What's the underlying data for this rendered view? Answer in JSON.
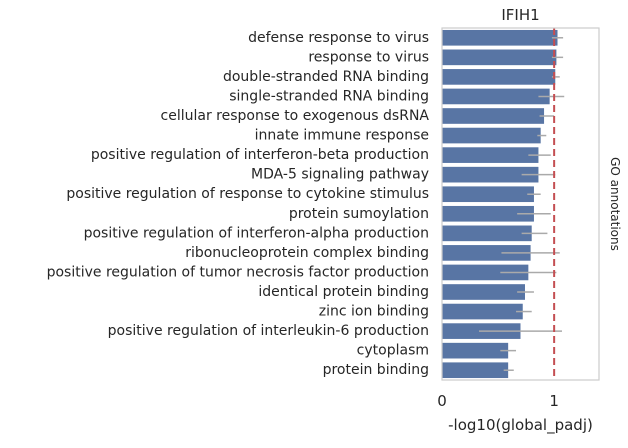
{
  "chart_data": {
    "type": "bar",
    "orientation": "horizontal",
    "title": "IFIH1",
    "xlabel": "-log10(global_padj)",
    "side_label": "GO annotations",
    "categories": [
      "defense response to virus",
      "response to virus",
      "double-stranded RNA binding",
      "single-stranded RNA binding",
      "cellular response to exogenous dsRNA",
      "innate immune response",
      "positive regulation of interferon-beta production",
      "MDA-5 signaling pathway",
      "positive regulation of response to cytokine stimulus",
      "protein sumoylation",
      "positive regulation of interferon-alpha production",
      "ribonucleoprotein complex binding",
      "positive regulation of tumor necrosis factor production",
      "identical protein binding",
      "zinc ion binding",
      "positive regulation of interleukin-6 production",
      "cytoplasm",
      "protein binding"
    ],
    "values": [
      1.03,
      1.02,
      1.01,
      0.96,
      0.91,
      0.88,
      0.86,
      0.86,
      0.82,
      0.82,
      0.8,
      0.79,
      0.77,
      0.74,
      0.72,
      0.7,
      0.59,
      0.59
    ],
    "error_low": [
      0.98,
      0.98,
      0.98,
      0.86,
      0.87,
      0.85,
      0.77,
      0.71,
      0.76,
      0.67,
      0.71,
      0.53,
      0.52,
      0.67,
      0.66,
      0.33,
      0.52,
      0.55
    ],
    "error_high": [
      1.08,
      1.08,
      1.05,
      1.09,
      1.0,
      0.93,
      0.97,
      1.01,
      0.88,
      0.97,
      0.94,
      1.05,
      1.02,
      0.82,
      0.8,
      1.07,
      0.66,
      0.64
    ],
    "reference_line": 1.0,
    "xlim": [
      0,
      1.4
    ],
    "xticks": [
      0,
      1
    ],
    "bar_color": "#5875a4",
    "error_color": "#aaaaaa",
    "reference_color": "#c44e52",
    "grid": false
  }
}
